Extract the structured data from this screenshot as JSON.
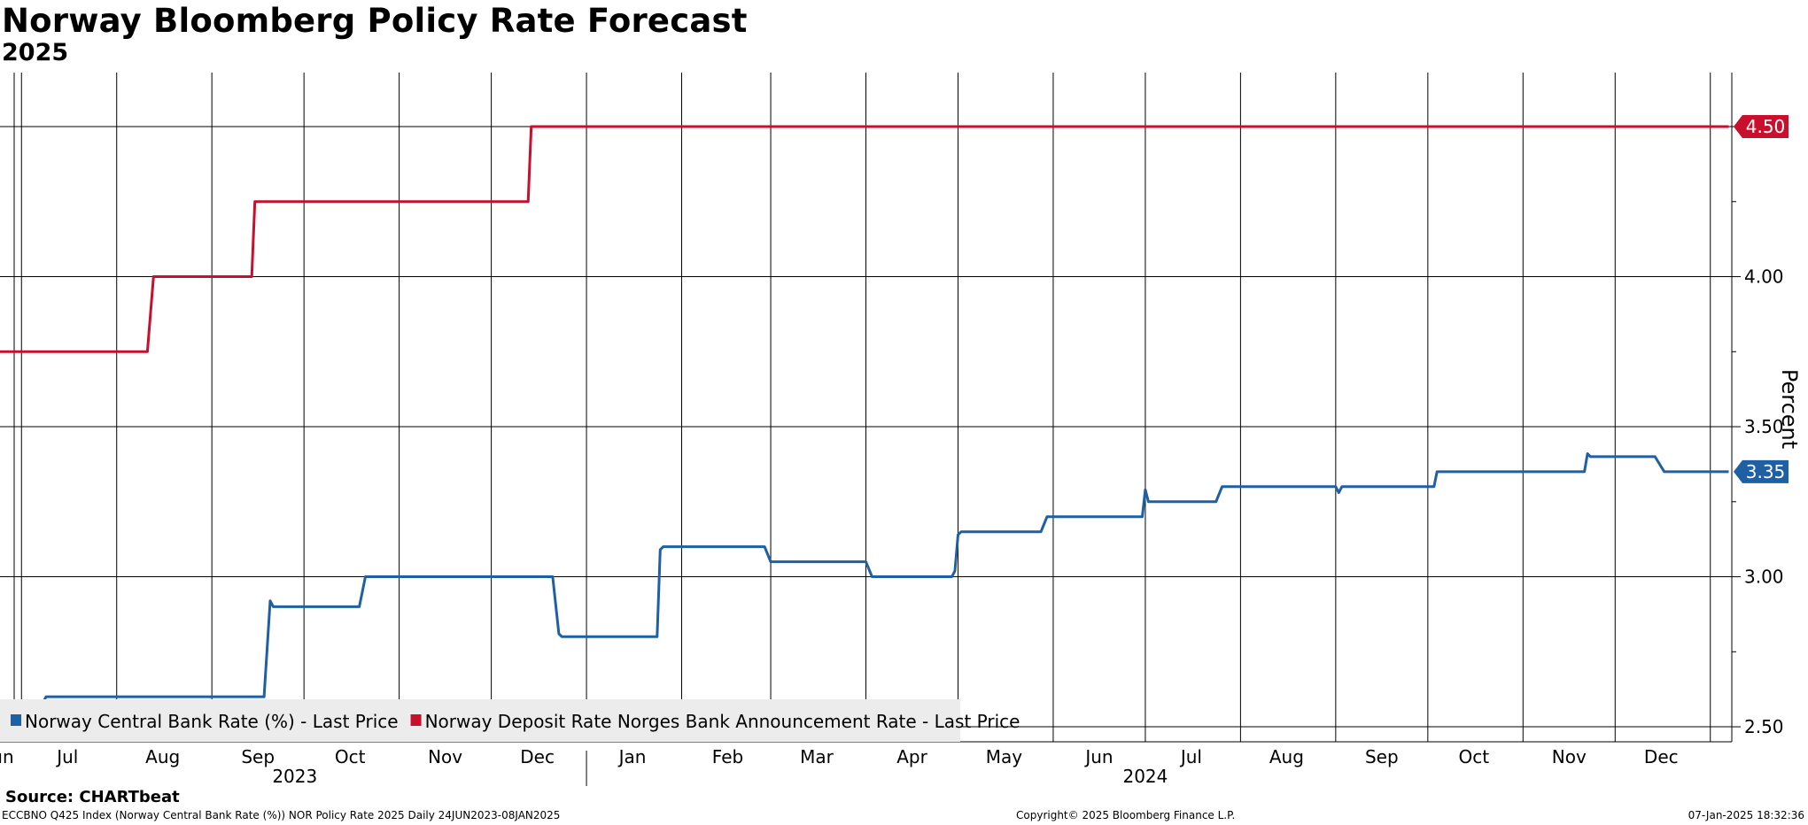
{
  "title": "Norway Bloomberg Policy Rate Forecast",
  "subtitle": "2025",
  "source": "Source: CHARTbeat",
  "footer": {
    "left": "ECCBNO Q425 Index (Norway Central Bank Rate (%)) NOR Policy Rate 2025  Daily 24JUN2023-08JAN2025",
    "center": "Copyright© 2025 Bloomberg Finance L.P.",
    "right": "07-Jan-2025 18:32:36"
  },
  "chart_data": {
    "type": "line",
    "ylabel": "Percent",
    "ylim": [
      2.45,
      4.68
    ],
    "yticks": [
      2.5,
      3.0,
      3.5,
      4.0,
      4.5
    ],
    "x_range": [
      "2023-06-24",
      "2025-01-08"
    ],
    "month_ticks": [
      {
        "label": "Jun",
        "date": "2023-06-24"
      },
      {
        "label": "Jul",
        "date": "2023-07-16"
      },
      {
        "label": "Aug",
        "date": "2023-08-16"
      },
      {
        "label": "Sep",
        "date": "2023-09-16"
      },
      {
        "label": "Oct",
        "date": "2023-10-16"
      },
      {
        "label": "Nov",
        "date": "2023-11-16"
      },
      {
        "label": "Dec",
        "date": "2023-12-16"
      },
      {
        "label": "Jan",
        "date": "2024-01-16"
      },
      {
        "label": "Feb",
        "date": "2024-02-16"
      },
      {
        "label": "Mar",
        "date": "2024-03-16"
      },
      {
        "label": "Apr",
        "date": "2024-04-16"
      },
      {
        "label": "May",
        "date": "2024-05-16"
      },
      {
        "label": "Jun",
        "date": "2024-06-16"
      },
      {
        "label": "Jul",
        "date": "2024-07-16"
      },
      {
        "label": "Aug",
        "date": "2024-08-16"
      },
      {
        "label": "Sep",
        "date": "2024-09-16"
      },
      {
        "label": "Oct",
        "date": "2024-10-16"
      },
      {
        "label": "Nov",
        "date": "2024-11-16"
      },
      {
        "label": "Dec",
        "date": "2024-12-16"
      }
    ],
    "month_gridlines": [
      "2023-07-01",
      "2023-08-01",
      "2023-09-01",
      "2023-10-01",
      "2023-11-01",
      "2023-12-01",
      "2024-01-01",
      "2024-02-01",
      "2024-03-01",
      "2024-04-01",
      "2024-05-01",
      "2024-06-01",
      "2024-07-01",
      "2024-08-01",
      "2024-09-01",
      "2024-10-01",
      "2024-11-01",
      "2024-12-01",
      "2025-01-01"
    ],
    "year_labels": [
      {
        "label": "2023",
        "date": "2023-09-28"
      },
      {
        "label": "2024",
        "date": "2024-07-01"
      }
    ],
    "year_divider": "2024-01-01",
    "grid": true,
    "legend_position": "bottom-left",
    "series": [
      {
        "name": "Norway Central Bank Rate (%) - Last Price",
        "color": "#1f5fa3",
        "last_value_label": "3.35",
        "points": [
          [
            "2023-07-08",
            2.58
          ],
          [
            "2023-07-09",
            2.6
          ],
          [
            "2023-09-18",
            2.6
          ],
          [
            "2023-09-20",
            2.92
          ],
          [
            "2023-09-21",
            2.9
          ],
          [
            "2023-10-19",
            2.9
          ],
          [
            "2023-10-21",
            3.0
          ],
          [
            "2023-12-21",
            3.0
          ],
          [
            "2023-12-23",
            2.81
          ],
          [
            "2023-12-24",
            2.8
          ],
          [
            "2024-01-24",
            2.8
          ],
          [
            "2024-01-25",
            3.09
          ],
          [
            "2024-01-26",
            3.1
          ],
          [
            "2024-02-28",
            3.1
          ],
          [
            "2024-03-01",
            3.05
          ],
          [
            "2024-04-01",
            3.05
          ],
          [
            "2024-04-03",
            3.0
          ],
          [
            "2024-04-29",
            3.0
          ],
          [
            "2024-04-30",
            3.02
          ],
          [
            "2024-05-01",
            3.14
          ],
          [
            "2024-05-02",
            3.15
          ],
          [
            "2024-05-28",
            3.15
          ],
          [
            "2024-05-30",
            3.2
          ],
          [
            "2024-06-30",
            3.2
          ],
          [
            "2024-07-01",
            3.29
          ],
          [
            "2024-07-02",
            3.25
          ],
          [
            "2024-07-24",
            3.25
          ],
          [
            "2024-07-26",
            3.3
          ],
          [
            "2024-09-01",
            3.3
          ],
          [
            "2024-09-02",
            3.28
          ],
          [
            "2024-09-03",
            3.3
          ],
          [
            "2024-10-03",
            3.3
          ],
          [
            "2024-10-04",
            3.35
          ],
          [
            "2024-11-21",
            3.35
          ],
          [
            "2024-11-22",
            3.41
          ],
          [
            "2024-11-23",
            3.4
          ],
          [
            "2024-12-14",
            3.4
          ],
          [
            "2024-12-17",
            3.35
          ],
          [
            "2025-01-07",
            3.35
          ]
        ]
      },
      {
        "name": "Norway Deposit Rate Norges Bank Announcement Rate - Last Price",
        "color": "#c8102e",
        "last_value_label": "4.50",
        "points": [
          [
            "2023-06-24",
            3.75
          ],
          [
            "2023-08-11",
            3.75
          ],
          [
            "2023-08-13",
            4.0
          ],
          [
            "2023-09-14",
            4.0
          ],
          [
            "2023-09-15",
            4.25
          ],
          [
            "2023-12-13",
            4.25
          ],
          [
            "2023-12-14",
            4.5
          ],
          [
            "2025-01-07",
            4.5
          ]
        ]
      }
    ]
  }
}
